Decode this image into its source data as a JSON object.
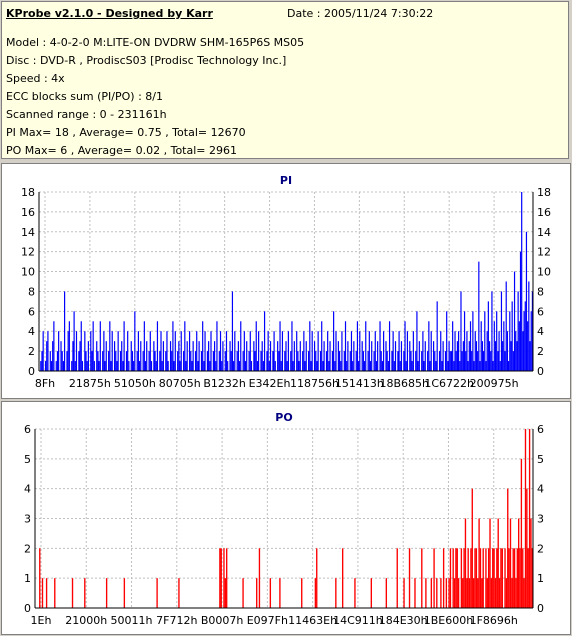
{
  "info": {
    "title": "KProbe v2.1.0 - Designed by Karr",
    "date": "Date : 2005/11/24 7:30:22",
    "lines": [
      "Model : 4-0-2-0 M:LITE-ON DVDRW SHM-165P6S MS05",
      "Disc : DVD-R , ProdiscS03   [Prodisc Technology Inc.]",
      "Speed : 4x",
      "ECC blocks sum (PI/PO) : 8/1",
      "Scanned range : 0 - 231161h",
      "PI Max= 18 , Average= 0.75 , Total= 12670",
      "PO Max= 6 , Average= 0.02 , Total= 2961"
    ]
  },
  "colors": {
    "pi": "#0000ff",
    "po": "#ff0000",
    "info_background": "#ffffe1",
    "grid": "#c0c0c0"
  },
  "chart_data": [
    {
      "type": "bar",
      "title": "PI",
      "ylim": [
        0,
        18
      ],
      "yticks": [
        0,
        2,
        4,
        6,
        8,
        10,
        12,
        14,
        16,
        18
      ],
      "xlim": [
        0,
        231161
      ],
      "x_tick_labels": [
        "8Fh",
        "21875h",
        "51050h",
        "80705h",
        "B1232h",
        "E342Eh",
        "118756h",
        "151413h",
        "18B685h",
        "1C6722h",
        "200975h"
      ],
      "grid": true,
      "color": "#0000ff",
      "series": [
        {
          "values": [
            0,
            1,
            2,
            4,
            0,
            1,
            3,
            4,
            0,
            2,
            1,
            3,
            5,
            0,
            1,
            2,
            4,
            0,
            3,
            2,
            1,
            8,
            0,
            2,
            4,
            5,
            0,
            1,
            3,
            6,
            1,
            4,
            0,
            2,
            3,
            5,
            1,
            0,
            4,
            2,
            1,
            3,
            0,
            4,
            2,
            5,
            1,
            0,
            3,
            2,
            1,
            5,
            0,
            2,
            4,
            1,
            3,
            0,
            2,
            5,
            1,
            4,
            0,
            3,
            2,
            1,
            4,
            0,
            2,
            3,
            1,
            5,
            0,
            2,
            4,
            1,
            0,
            3,
            2,
            1,
            6,
            0,
            2,
            4,
            1,
            3,
            0,
            2,
            5,
            1,
            3,
            0,
            2,
            4,
            1,
            0,
            3,
            2,
            1,
            5,
            0,
            2,
            4,
            1,
            3,
            0,
            2,
            4,
            1,
            0,
            3,
            2,
            5,
            1,
            4,
            0,
            2,
            3,
            1,
            4,
            0,
            2,
            5,
            1,
            3,
            0,
            4,
            2,
            1,
            3,
            0,
            2,
            4,
            1,
            3,
            0,
            2,
            5,
            1,
            4,
            0,
            2,
            3,
            1,
            4,
            0,
            2,
            3,
            1,
            5,
            0,
            2,
            4,
            1,
            3,
            0,
            2,
            4,
            1,
            0,
            3,
            2,
            8,
            1,
            4,
            0,
            2,
            3,
            1,
            5,
            0,
            2,
            4,
            1,
            3,
            0,
            2,
            4,
            1,
            0,
            3,
            2,
            5,
            1,
            4,
            0,
            2,
            3,
            1,
            6,
            0,
            2,
            4,
            1,
            3,
            0,
            2,
            4,
            1,
            0,
            3,
            2,
            5,
            1,
            4,
            0,
            2,
            3,
            1,
            4,
            0,
            2,
            5,
            1,
            3,
            0,
            4,
            2,
            1,
            3,
            0,
            2,
            4,
            1,
            3,
            0,
            2,
            5,
            1,
            4,
            0,
            3,
            2,
            1,
            4,
            0,
            2,
            5,
            1,
            3,
            0,
            2,
            4,
            1,
            3,
            0,
            2,
            6,
            1,
            4,
            0,
            3,
            2,
            1,
            4,
            0,
            2,
            5,
            1,
            3,
            0,
            2,
            4,
            1,
            3,
            0,
            2,
            5,
            1,
            4,
            0,
            3,
            2,
            1,
            5,
            0,
            2,
            4,
            1,
            3,
            0,
            2,
            4,
            1,
            3,
            0,
            5,
            2,
            1,
            4,
            0,
            3,
            2,
            1,
            5,
            0,
            2,
            4,
            1,
            3,
            0,
            2,
            4,
            1,
            3,
            0,
            2,
            5,
            1,
            4,
            0,
            3,
            2,
            1,
            4,
            0,
            2,
            6,
            1,
            3,
            0,
            2,
            4,
            1,
            3,
            0,
            2,
            5,
            1,
            4,
            0,
            3,
            2,
            1,
            7,
            0,
            2,
            4,
            1,
            3,
            0,
            2,
            6,
            1,
            3,
            2,
            2,
            5,
            1,
            4,
            2,
            3,
            4,
            1,
            8,
            2,
            3,
            6,
            2,
            4,
            1,
            3,
            5,
            2,
            6,
            1,
            4,
            3,
            2,
            11,
            1,
            5,
            3,
            2,
            6,
            1,
            4,
            7,
            3,
            2,
            8,
            1,
            5,
            3,
            6,
            2,
            4,
            1,
            8,
            3,
            5,
            2,
            9,
            4,
            1,
            6,
            3,
            7,
            2,
            10,
            4,
            3,
            8,
            5,
            12,
            18,
            4,
            6,
            7,
            14,
            5,
            9,
            3,
            6,
            8
          ]
        }
      ]
    },
    {
      "type": "bar",
      "title": "PO",
      "ylim": [
        0,
        6
      ],
      "yticks": [
        0,
        1,
        2,
        3,
        4,
        5,
        6
      ],
      "xlim": [
        0,
        231161
      ],
      "x_tick_labels": [
        "1Eh",
        "21000h",
        "50011h",
        "7F712h",
        "B0007h",
        "E097Fh",
        "11463Eh",
        "14C911h",
        "184E30h",
        "1BE600h",
        "1F8696h"
      ],
      "grid": true,
      "color": "#ff0000",
      "series": [
        {
          "values": [
            0,
            0,
            0,
            2,
            0,
            1,
            0,
            0,
            1,
            0,
            0,
            0,
            0,
            0,
            1,
            0,
            0,
            0,
            0,
            0,
            0,
            0,
            0,
            0,
            0,
            0,
            0,
            1,
            0,
            0,
            0,
            0,
            0,
            0,
            0,
            0,
            1,
            0,
            0,
            0,
            0,
            0,
            0,
            0,
            0,
            0,
            0,
            0,
            0,
            0,
            0,
            0,
            1,
            0,
            0,
            0,
            0,
            0,
            0,
            0,
            0,
            0,
            0,
            0,
            0,
            1,
            0,
            0,
            0,
            0,
            0,
            0,
            0,
            0,
            0,
            0,
            0,
            0,
            0,
            0,
            0,
            0,
            0,
            0,
            0,
            0,
            0,
            0,
            0,
            1,
            0,
            0,
            0,
            0,
            0,
            0,
            0,
            0,
            0,
            0,
            0,
            0,
            0,
            0,
            0,
            1,
            0,
            0,
            0,
            0,
            0,
            0,
            0,
            0,
            0,
            0,
            0,
            0,
            0,
            0,
            0,
            0,
            0,
            0,
            0,
            0,
            0,
            0,
            0,
            0,
            0,
            0,
            0,
            0,
            0,
            2,
            2,
            0,
            2,
            1,
            2,
            0,
            0,
            0,
            0,
            0,
            0,
            0,
            0,
            0,
            0,
            0,
            1,
            0,
            0,
            0,
            0,
            0,
            0,
            0,
            0,
            0,
            1,
            0,
            2,
            0,
            0,
            0,
            0,
            0,
            0,
            0,
            1,
            0,
            0,
            0,
            0,
            0,
            0,
            1,
            0,
            0,
            0,
            0,
            0,
            0,
            0,
            0,
            0,
            0,
            0,
            0,
            0,
            0,
            0,
            1,
            0,
            0,
            0,
            0,
            0,
            0,
            0,
            0,
            0,
            1,
            2,
            0,
            0,
            0,
            0,
            0,
            0,
            0,
            0,
            0,
            0,
            0,
            0,
            0,
            1,
            0,
            0,
            0,
            0,
            2,
            0,
            0,
            0,
            0,
            0,
            0,
            0,
            0,
            1,
            0,
            0,
            0,
            0,
            0,
            0,
            0,
            0,
            0,
            0,
            0,
            1,
            0,
            0,
            0,
            0,
            0,
            0,
            0,
            0,
            0,
            0,
            1,
            0,
            0,
            0,
            0,
            0,
            0,
            0,
            2,
            0,
            0,
            0,
            0,
            1,
            0,
            0,
            0,
            2,
            0,
            0,
            0,
            1,
            0,
            0,
            0,
            0,
            2,
            0,
            0,
            1,
            0,
            0,
            0,
            1,
            0,
            2,
            0,
            1,
            0,
            0,
            1,
            0,
            2,
            0,
            1,
            0,
            1,
            2,
            0,
            2,
            1,
            2,
            2,
            1,
            0,
            2,
            1,
            2,
            3,
            1,
            2,
            1,
            2,
            4,
            1,
            2,
            2,
            1,
            3,
            2,
            1,
            2,
            0,
            2,
            1,
            2,
            3,
            1,
            2,
            2,
            1,
            2,
            3,
            1,
            2,
            2,
            0,
            2,
            1,
            4,
            2,
            3,
            1,
            2,
            2,
            1,
            2,
            3,
            2,
            5,
            2,
            1,
            6,
            4,
            2,
            6,
            3,
            2
          ]
        }
      ]
    }
  ]
}
